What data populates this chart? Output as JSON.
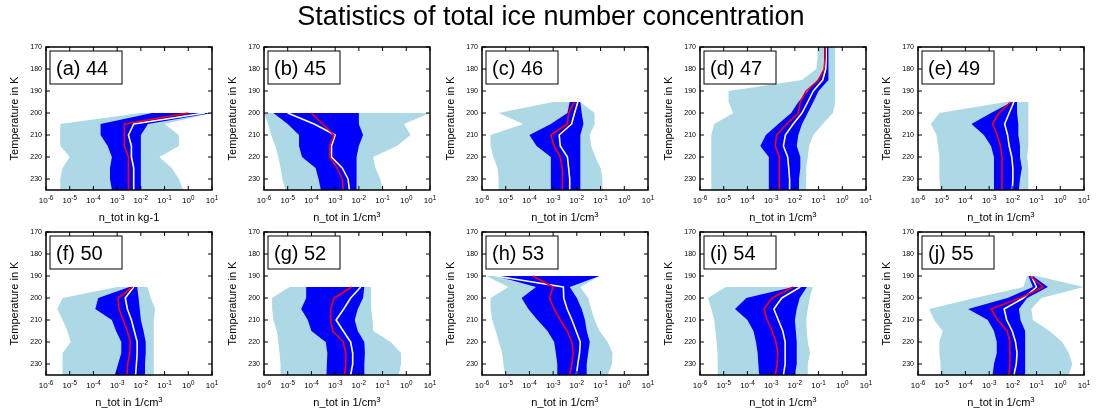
{
  "chart_data": [
    {
      "type": "line",
      "orientation": "horizontal",
      "log": "x",
      "xlabel": "n_tot in kg-1",
      "ylabel": "Temperature in K",
      "annotations": [
        "(a) 44"
      ],
      "colors": [
        "#0000ff",
        "#add8e6"
      ],
      "xlim": [
        1e-06,
        10
      ],
      "ylim": [
        235,
        170
      ],
      "xticks": [
        {
          "value": 1e-06,
          "label": "10$^{-6}$"
        },
        {
          "value": 1e-05,
          "label": "10$^{-5}$"
        },
        {
          "value": 0.0001,
          "label": "10$^{-4}$"
        },
        {
          "value": 0.001,
          "label": "10$^{-3}$"
        },
        {
          "value": 0.01,
          "label": "10$^{-2}$"
        },
        {
          "value": 0.1,
          "label": "10$^{-1}$"
        },
        {
          "value": 1,
          "label": "10$^{0}$"
        },
        {
          "value": 10,
          "label": "10$^{1}$"
        }
      ],
      "yticks": [
        170,
        180,
        190,
        200,
        210,
        220,
        230
      ],
      "x": [
        200,
        205,
        210,
        215,
        220,
        225,
        230,
        235
      ],
      "series": [
        {
          "color": "#ffffff",
          "values": [
            5,
            0.005,
            0.003,
            0.004,
            0.004,
            0.005,
            0.005,
            0.005
          ],
          "lower": [
            0.03,
            0.0002,
            0.0002,
            0.0004,
            0.0006,
            0.0005,
            0.0005,
            0.0006
          ],
          "upper": [
            10,
            0.02,
            0.01,
            0.01,
            0.01,
            0.01,
            0.01,
            0.01
          ]
        },
        {
          "color": "#ff0000",
          "values": [
            1,
            0.002,
            0.002,
            0.002,
            0.003,
            0.003,
            0.003,
            0.003
          ],
          "lower": [
            0.01,
            4e-06,
            4e-06,
            4e-06,
            1e-05,
            5e-06,
            4e-06,
            4e-06
          ],
          "upper": [
            10,
            0.1,
            0.4,
            0.4,
            0.06,
            0.2,
            0.4,
            0.6
          ]
        }
      ]
    },
    {
      "type": "line",
      "orientation": "horizontal",
      "log": "x",
      "xlabel": "n_tot in 1/cm$^{3}$",
      "ylabel": "Temperature in K",
      "annotations": [
        "(b) 45"
      ],
      "colors": [
        "#0000ff",
        "#add8e6"
      ],
      "xlim": [
        1e-06,
        10
      ],
      "ylim": [
        235,
        170
      ],
      "xticks": [
        {
          "value": 1e-06,
          "label": "10$^{-6}$"
        },
        {
          "value": 1e-05,
          "label": "10$^{-5}$"
        },
        {
          "value": 0.0001,
          "label": "10$^{-4}$"
        },
        {
          "value": 0.001,
          "label": "10$^{-3}$"
        },
        {
          "value": 0.01,
          "label": "10$^{-2}$"
        },
        {
          "value": 0.1,
          "label": "10$^{-1}$"
        },
        {
          "value": 1,
          "label": "10$^{0}$"
        },
        {
          "value": 10,
          "label": "10$^{1}$"
        }
      ],
      "yticks": [
        170,
        180,
        190,
        200,
        210,
        220,
        230
      ],
      "x": [
        200,
        205,
        210,
        215,
        220,
        225,
        230,
        235
      ],
      "series": [
        {
          "color": "#ffffff",
          "values": [
            1e-05,
            0.00013,
            0.001,
            0.0007,
            0.0007,
            0.002,
            0.0035,
            0.004
          ],
          "lower": [
            2.5e-06,
            1e-05,
            3e-05,
            3e-05,
            4e-05,
            0.00015,
            0.0002,
            0.00025
          ],
          "upper": [
            0.01,
            0.01,
            0.015,
            0.01,
            0.008,
            0.008,
            0.008,
            0.008
          ]
        },
        {
          "color": "#ff0000",
          "values": [
            0.0001,
            0.0003,
            0.0009,
            0.0006,
            0.0006,
            0.0012,
            0.002,
            0.0022
          ],
          "lower": [
            1e-06,
            1.5e-06,
            2e-06,
            3e-06,
            4e-06,
            5e-06,
            6e-06,
            8e-06
          ],
          "upper": [
            10,
            0.8,
            1.5,
            0.4,
            0.04,
            0.05,
            0.08,
            0.1
          ]
        }
      ]
    },
    {
      "type": "line",
      "title": "Statistics of total ice number concentration",
      "orientation": "horizontal",
      "log": "x",
      "xlabel": "n_tot in 1/cm$^{3}$",
      "ylabel": "Temperature in K",
      "annotations": [
        "(c) 46"
      ],
      "colors": [
        "#0000ff",
        "#add8e6"
      ],
      "xlim": [
        1e-06,
        10
      ],
      "ylim": [
        235,
        170
      ],
      "xticks": [
        {
          "value": 1e-06,
          "label": "10$^{-6}$"
        },
        {
          "value": 1e-05,
          "label": "10$^{-5}$"
        },
        {
          "value": 0.0001,
          "label": "10$^{-4}$"
        },
        {
          "value": 0.001,
          "label": "10$^{-3}$"
        },
        {
          "value": 0.01,
          "label": "10$^{-2}$"
        },
        {
          "value": 0.1,
          "label": "10$^{-1}$"
        },
        {
          "value": 1,
          "label": "10$^{0}$"
        },
        {
          "value": 10,
          "label": "10$^{1}$"
        }
      ],
      "yticks": [
        170,
        180,
        190,
        200,
        210,
        220,
        230
      ],
      "x": [
        195,
        200,
        205,
        210,
        215,
        220,
        225,
        230,
        235
      ],
      "series": [
        {
          "color": "#ffffff",
          "values": [
            0.011,
            0.008,
            0.006,
            0.0018,
            0.002,
            0.004,
            0.0045,
            0.005,
            0.005
          ],
          "lower": [
            0.005,
            0.004,
            0.0008,
            0.0001,
            0.0002,
            0.0008,
            0.0008,
            0.0008,
            0.0008
          ],
          "upper": [
            0.014,
            0.016,
            0.019,
            0.014,
            0.014,
            0.014,
            0.014,
            0.014,
            0.014
          ]
        },
        {
          "color": "#ff0000",
          "values": [
            0.008,
            0.0045,
            0.004,
            0.0008,
            0.0011,
            0.002,
            0.0024,
            0.0025,
            0.0024
          ],
          "lower": [
            0.001,
            5e-06,
            5.5e-05,
            2.3e-06,
            2.3e-06,
            3e-06,
            4.5e-06,
            5e-06,
            5e-06
          ],
          "upper": [
            0.014,
            0.056,
            0.056,
            0.035,
            0.04,
            0.06,
            0.1,
            0.12,
            0.12
          ]
        }
      ]
    },
    {
      "type": "line",
      "orientation": "horizontal",
      "log": "x",
      "xlabel": "n_tot in 1/cm$^{3}$",
      "ylabel": "Temperature in K",
      "annotations": [
        "(d) 47"
      ],
      "colors": [
        "#0000ff",
        "#add8e6"
      ],
      "xlim": [
        1e-06,
        10
      ],
      "ylim": [
        235,
        170
      ],
      "xticks": [
        {
          "value": 1e-06,
          "label": "10$^{-6}$"
        },
        {
          "value": 1e-05,
          "label": "10$^{-5}$"
        },
        {
          "value": 0.0001,
          "label": "10$^{-4}$"
        },
        {
          "value": 0.001,
          "label": "10$^{-3}$"
        },
        {
          "value": 0.01,
          "label": "10$^{-2}$"
        },
        {
          "value": 0.1,
          "label": "10$^{-1}$"
        },
        {
          "value": 1,
          "label": "10$^{0}$"
        },
        {
          "value": 10,
          "label": "10$^{1}$"
        }
      ],
      "yticks": [
        170,
        180,
        190,
        200,
        210,
        220,
        230
      ],
      "x": [
        170,
        175,
        180,
        185,
        190,
        195,
        200,
        205,
        210,
        215,
        220,
        225,
        230,
        235
      ],
      "series": [
        {
          "color": "#ffffff",
          "values": [
            0.21,
            0.21,
            0.2,
            0.15,
            0.06,
            0.035,
            0.02,
            0.0085,
            0.004,
            0.0033,
            0.005,
            0.0055,
            0.006,
            0.006
          ],
          "lower": [
            0.17,
            0.17,
            0.17,
            0.09,
            0.035,
            0.014,
            0.007,
            0.002,
            0.0006,
            0.00035,
            0.0008,
            0.0008,
            0.0008,
            0.0008
          ],
          "upper": [
            0.26,
            0.26,
            0.26,
            0.26,
            0.1,
            0.06,
            0.035,
            0.02,
            0.014,
            0.012,
            0.017,
            0.017,
            0.015,
            0.015
          ]
        },
        {
          "color": "#ff0000",
          "values": [
            0.19,
            0.19,
            0.17,
            0.1,
            0.03,
            0.017,
            0.014,
            0.0045,
            0.0017,
            0.0015,
            0.0022,
            0.0022,
            0.0022,
            0.0022
          ],
          "lower": [
            0.09,
            0.09,
            0.08,
            0.02,
            1.6e-05,
            1.6e-05,
            2.5e-05,
            4e-06,
            3e-06,
            3e-06,
            3e-06,
            3e-06,
            3e-06,
            3e-06
          ],
          "upper": [
            0.5,
            0.5,
            0.5,
            0.5,
            0.5,
            0.5,
            0.4,
            0.15,
            0.06,
            0.04,
            0.035,
            0.03,
            0.03,
            0.03
          ]
        }
      ]
    },
    {
      "type": "line",
      "orientation": "horizontal",
      "log": "x",
      "xlabel": "n_tot in 1/cm$^{3}$",
      "ylabel": "Temperature in K",
      "annotations": [
        "(e) 49"
      ],
      "colors": [
        "#0000ff",
        "#add8e6"
      ],
      "xlim": [
        1e-06,
        10
      ],
      "ylim": [
        235,
        170
      ],
      "xticks": [
        {
          "value": 1e-06,
          "label": "10$^{-6}$"
        },
        {
          "value": 1e-05,
          "label": "10$^{-5}$"
        },
        {
          "value": 0.0001,
          "label": "10$^{-4}$"
        },
        {
          "value": 0.001,
          "label": "10$^{-3}$"
        },
        {
          "value": 0.01,
          "label": "10$^{-2}$"
        },
        {
          "value": 0.1,
          "label": "10$^{-1}$"
        },
        {
          "value": 1,
          "label": "10$^{0}$"
        },
        {
          "value": 10,
          "label": "10$^{1}$"
        }
      ],
      "yticks": [
        170,
        180,
        190,
        200,
        210,
        220,
        230
      ],
      "x": [
        195,
        200,
        205,
        210,
        215,
        220,
        225,
        230,
        235
      ],
      "series": [
        {
          "color": "#ffffff",
          "values": [
            0.011,
            0.007,
            0.0045,
            0.006,
            0.007,
            0.009,
            0.01,
            0.01,
            0.0095
          ],
          "lower": [
            0.009,
            0.0012,
            0.00018,
            0.0006,
            0.0012,
            0.0016,
            0.0016,
            0.0016,
            0.0016
          ],
          "upper": [
            0.015,
            0.015,
            0.017,
            0.017,
            0.02,
            0.02,
            0.024,
            0.02,
            0.018
          ]
        },
        {
          "color": "#ff0000",
          "values": [
            0.008,
            0.0026,
            0.0014,
            0.0022,
            0.003,
            0.0035,
            0.0035,
            0.0035,
            0.0034
          ],
          "lower": [
            0.005,
            8e-06,
            3.5e-06,
            6e-06,
            7e-06,
            8e-06,
            8e-06,
            8e-06,
            9e-06
          ],
          "upper": [
            0.045,
            0.045,
            0.045,
            0.045,
            0.045,
            0.04,
            0.045,
            0.045,
            0.045
          ]
        }
      ]
    },
    {
      "type": "line",
      "orientation": "horizontal",
      "log": "x",
      "xlabel": "n_tot in 1/cm$^{3}$",
      "ylabel": "Temperature in K",
      "annotations": [
        "(f) 50"
      ],
      "colors": [
        "#0000ff",
        "#add8e6"
      ],
      "xlim": [
        1e-06,
        10
      ],
      "ylim": [
        235,
        170
      ],
      "xticks": [
        {
          "value": 1e-06,
          "label": "10$^{-6}$"
        },
        {
          "value": 1e-05,
          "label": "10$^{-5}$"
        },
        {
          "value": 0.0001,
          "label": "10$^{-4}$"
        },
        {
          "value": 0.001,
          "label": "10$^{-3}$"
        },
        {
          "value": 0.01,
          "label": "10$^{-2}$"
        },
        {
          "value": 0.1,
          "label": "10$^{-1}$"
        },
        {
          "value": 1,
          "label": "10$^{0}$"
        },
        {
          "value": 10,
          "label": "10$^{1}$"
        }
      ],
      "yticks": [
        170,
        180,
        190,
        200,
        210,
        220,
        230
      ],
      "x": [
        195,
        200,
        205,
        210,
        215,
        220,
        225,
        230,
        235
      ],
      "series": [
        {
          "color": "#ffffff",
          "values": [
            0.005,
            0.0022,
            0.0027,
            0.004,
            0.0053,
            0.007,
            0.007,
            0.0065,
            0.006
          ],
          "lower": [
            0.0033,
            0.00016,
            0.00012,
            0.0006,
            0.0009,
            0.0015,
            0.0015,
            0.0011,
            0.0008
          ],
          "upper": [
            0.007,
            0.008,
            0.009,
            0.01,
            0.013,
            0.016,
            0.016,
            0.015,
            0.015
          ]
        },
        {
          "color": "#ff0000",
          "values": [
            0.0045,
            0.0011,
            0.0012,
            0.0018,
            0.0027,
            0.0036,
            0.0034,
            0.0028,
            0.0026
          ],
          "lower": [
            0.001,
            5e-06,
            3e-06,
            5e-06,
            8e-06,
            1.1e-05,
            5e-06,
            5e-06,
            5e-06
          ],
          "upper": [
            0.019,
            0.026,
            0.04,
            0.035,
            0.035,
            0.035,
            0.035,
            0.035,
            0.035
          ]
        }
      ]
    },
    {
      "type": "line",
      "orientation": "horizontal",
      "log": "x",
      "xlabel": "n_tot in 1/cm$^{3}$",
      "ylabel": "Temperature in K",
      "annotations": [
        "(g) 52"
      ],
      "colors": [
        "#0000ff",
        "#add8e6"
      ],
      "xlim": [
        1e-06,
        10
      ],
      "ylim": [
        235,
        170
      ],
      "xticks": [
        {
          "value": 1e-06,
          "label": "10$^{-6}$"
        },
        {
          "value": 1e-05,
          "label": "10$^{-5}$"
        },
        {
          "value": 0.0001,
          "label": "10$^{-4}$"
        },
        {
          "value": 0.001,
          "label": "10$^{-3}$"
        },
        {
          "value": 0.01,
          "label": "10$^{-2}$"
        },
        {
          "value": 0.1,
          "label": "10$^{-1}$"
        },
        {
          "value": 1,
          "label": "10$^{0}$"
        },
        {
          "value": 10,
          "label": "10$^{1}$"
        }
      ],
      "yticks": [
        170,
        180,
        190,
        200,
        210,
        220,
        230
      ],
      "x": [
        195,
        200,
        205,
        210,
        215,
        220,
        225,
        230,
        235
      ],
      "series": [
        {
          "color": "#ffffff",
          "values": [
            0.012,
            0.0045,
            0.0023,
            0.0011,
            0.0022,
            0.0045,
            0.0055,
            0.0055,
            0.0045
          ],
          "lower": [
            6e-05,
            6e-05,
            3.7e-05,
            7e-05,
            0.0001,
            0.0004,
            0.00047,
            0.00045,
            0.00043
          ],
          "upper": [
            0.017,
            0.015,
            0.009,
            0.0067,
            0.009,
            0.017,
            0.018,
            0.017,
            0.017
          ]
        },
        {
          "color": "#ff0000",
          "values": [
            0.005,
            0.0009,
            0.00065,
            0.00065,
            0.0008,
            0.0022,
            0.0028,
            0.0028,
            0.0025
          ],
          "lower": [
            1.2e-05,
            2.2e-06,
            2.2e-06,
            2.5e-06,
            3.5e-06,
            4e-06,
            4.5e-06,
            5e-06,
            5e-06
          ],
          "upper": [
            0.033,
            0.033,
            0.033,
            0.038,
            0.04,
            0.22,
            0.6,
            0.6,
            0.48
          ]
        }
      ]
    },
    {
      "type": "line",
      "orientation": "horizontal",
      "log": "x",
      "xlabel": "n_tot in 1/cm$^{3}$",
      "ylabel": "Temperature in K",
      "annotations": [
        "(h) 53"
      ],
      "colors": [
        "#0000ff",
        "#add8e6"
      ],
      "xlim": [
        1e-06,
        10
      ],
      "ylim": [
        235,
        170
      ],
      "xticks": [
        {
          "value": 1e-06,
          "label": "10$^{-6}$"
        },
        {
          "value": 1e-05,
          "label": "10$^{-5}$"
        },
        {
          "value": 0.0001,
          "label": "10$^{-4}$"
        },
        {
          "value": 0.001,
          "label": "10$^{-3}$"
        },
        {
          "value": 0.01,
          "label": "10$^{-2}$"
        },
        {
          "value": 0.1,
          "label": "10$^{-1}$"
        },
        {
          "value": 1,
          "label": "10$^{0}$"
        },
        {
          "value": 10,
          "label": "10$^{1}$"
        }
      ],
      "yticks": [
        170,
        180,
        190,
        200,
        210,
        220,
        230
      ],
      "x": [
        190,
        195,
        200,
        205,
        210,
        215,
        220,
        225,
        230,
        235
      ],
      "series": [
        {
          "color": "#ffffff",
          "values": [
            3.8e-06,
            0.0027,
            0.0028,
            0.0039,
            0.0062,
            0.0093,
            0.014,
            0.013,
            0.011,
            0.0095
          ],
          "lower": [
            3.8e-06,
            0.00019,
            4.7e-05,
            9e-05,
            0.00022,
            0.00058,
            0.0011,
            0.0013,
            0.0015,
            0.0015
          ],
          "upper": [
            0.09,
            0.005,
            0.01,
            0.016,
            0.022,
            0.026,
            0.035,
            0.03,
            0.026,
            0.026
          ]
        },
        {
          "color": "#ff0000",
          "values": [
            0.00014,
            0.001,
            0.0007,
            0.0011,
            0.002,
            0.0039,
            0.0062,
            0.007,
            0.0062,
            0.005
          ],
          "lower": [
            1.5e-06,
            1.3e-05,
            2.3e-06,
            2.3e-06,
            2.7e-06,
            3.8e-06,
            5.2e-06,
            7e-06,
            8e-06,
            9.7e-06
          ],
          "upper": [
            0.09,
            0.014,
            0.03,
            0.04,
            0.056,
            0.09,
            0.2,
            0.32,
            0.3,
            0.2
          ]
        }
      ]
    },
    {
      "type": "line",
      "orientation": "horizontal",
      "log": "x",
      "xlabel": "n_tot in 1/cm$^{3}$",
      "ylabel": "Temperature in K",
      "annotations": [
        "(i) 54"
      ],
      "colors": [
        "#0000ff",
        "#add8e6"
      ],
      "xlim": [
        1e-06,
        10
      ],
      "ylim": [
        235,
        170
      ],
      "xticks": [
        {
          "value": 1e-06,
          "label": "10$^{-6}$"
        },
        {
          "value": 1e-05,
          "label": "10$^{-5}$"
        },
        {
          "value": 0.0001,
          "label": "10$^{-4}$"
        },
        {
          "value": 0.001,
          "label": "10$^{-3}$"
        },
        {
          "value": 0.01,
          "label": "10$^{-2}$"
        },
        {
          "value": 0.1,
          "label": "10$^{-1}$"
        },
        {
          "value": 1,
          "label": "10$^{0}$"
        },
        {
          "value": 10,
          "label": "10$^{1}$"
        }
      ],
      "yticks": [
        170,
        180,
        190,
        200,
        210,
        220,
        230
      ],
      "x": [
        195,
        200,
        205,
        210,
        215,
        220,
        225,
        230,
        235
      ],
      "series": [
        {
          "color": "#ffffff",
          "values": [
            0.017,
            0.0028,
            0.0013,
            0.002,
            0.0031,
            0.0039,
            0.0039,
            0.0039,
            0.0033
          ],
          "lower": [
            0.0085,
            9e-05,
            3e-05,
            0.0001,
            0.00018,
            0.00023,
            0.00027,
            0.00029,
            0.00031
          ],
          "upper": [
            0.032,
            0.016,
            0.012,
            0.01,
            0.011,
            0.012,
            0.012,
            0.012,
            0.01
          ]
        },
        {
          "color": "#ff0000",
          "values": [
            0.0085,
            0.0011,
            0.0005,
            0.00068,
            0.0011,
            0.0016,
            0.0019,
            0.0018,
            0.0015
          ],
          "lower": [
            1.2e-05,
            2.2e-06,
            3e-06,
            4e-06,
            4.5e-06,
            5e-06,
            5.5e-06,
            5.6e-06,
            5.6e-06
          ],
          "upper": [
            0.057,
            0.042,
            0.035,
            0.03,
            0.032,
            0.035,
            0.044,
            0.035,
            0.035
          ]
        }
      ]
    },
    {
      "type": "line",
      "orientation": "horizontal",
      "log": "x",
      "xlabel": "n_tot in 1/cm$^{3}$",
      "ylabel": "Temperature in K",
      "annotations": [
        "(j) 55"
      ],
      "colors": [
        "#0000ff",
        "#add8e6"
      ],
      "xlim": [
        1e-06,
        10
      ],
      "ylim": [
        235,
        170
      ],
      "xticks": [
        {
          "value": 1e-06,
          "label": "10$^{-6}$"
        },
        {
          "value": 1e-05,
          "label": "10$^{-5}$"
        },
        {
          "value": 0.0001,
          "label": "10$^{-4}$"
        },
        {
          "value": 0.001,
          "label": "10$^{-3}$"
        },
        {
          "value": 0.01,
          "label": "10$^{-2}$"
        },
        {
          "value": 0.1,
          "label": "10$^{-1}$"
        },
        {
          "value": 1,
          "label": "10$^{0}$"
        },
        {
          "value": 10,
          "label": "10$^{1}$"
        }
      ],
      "yticks": [
        170,
        180,
        190,
        200,
        210,
        220,
        230
      ],
      "x": [
        190,
        195,
        200,
        205,
        210,
        215,
        220,
        225,
        230,
        235
      ],
      "series": [
        {
          "color": "#ffffff",
          "values": [
            0.06,
            0.1,
            0.028,
            0.0043,
            0.0055,
            0.0094,
            0.013,
            0.015,
            0.014,
            0.011
          ],
          "lower": [
            0.046,
            0.07,
            0.0059,
            0.00013,
            0.00088,
            0.0016,
            0.0021,
            0.0021,
            0.0016,
            0.0014
          ],
          "upper": [
            0.07,
            0.3,
            0.04,
            0.018,
            0.021,
            0.033,
            0.033,
            0.033,
            0.033,
            0.033
          ]
        },
        {
          "color": "#ff0000",
          "values": [
            0.053,
            0.19,
            0.02,
            0.0012,
            0.0023,
            0.0058,
            0.0075,
            0.0075,
            0.0075,
            0.0068
          ],
          "lower": [
            0.04,
            0.028,
            0.00025,
            3e-06,
            4.8e-06,
            1.1e-05,
            8e-06,
            8e-06,
            9e-06,
            9e-06
          ],
          "upper": [
            0.1,
            10,
            0.16,
            0.06,
            0.07,
            0.35,
            1.2,
            2.3,
            3.2,
            2.3
          ]
        }
      ]
    }
  ]
}
